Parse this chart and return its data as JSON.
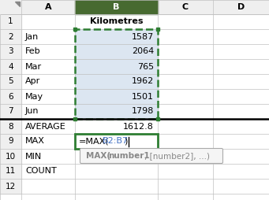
{
  "bg_color": "#ffffff",
  "header_bg": "#efefef",
  "selected_col_header_bg": "#476a30",
  "selected_col_header_text": "#ffffff",
  "selected_col_bg": "#dce6f1",
  "grid_color": "#c0c0c0",
  "cell_text_color": "#000000",
  "formula_highlight_color": "#4472c4",
  "dashed_border_color": "#2e7d32",
  "active_cell_border": "#2e7d32",
  "tooltip_bg": "#f5f5f5",
  "tooltip_border": "#aaaaaa",
  "col_a_labels": [
    "",
    "Jan",
    "Feb",
    "Mar",
    "Apr",
    "May",
    "Jun",
    "AVERAGE",
    "MAX",
    "MIN",
    "COUNT",
    ""
  ],
  "col_b_values": [
    "Kilometres",
    "1587",
    "2064",
    "765",
    "1962",
    "1501",
    "1798",
    "1612.8",
    "=MAX(B2:B7)",
    "",
    "",
    ""
  ],
  "n_rows": 12
}
